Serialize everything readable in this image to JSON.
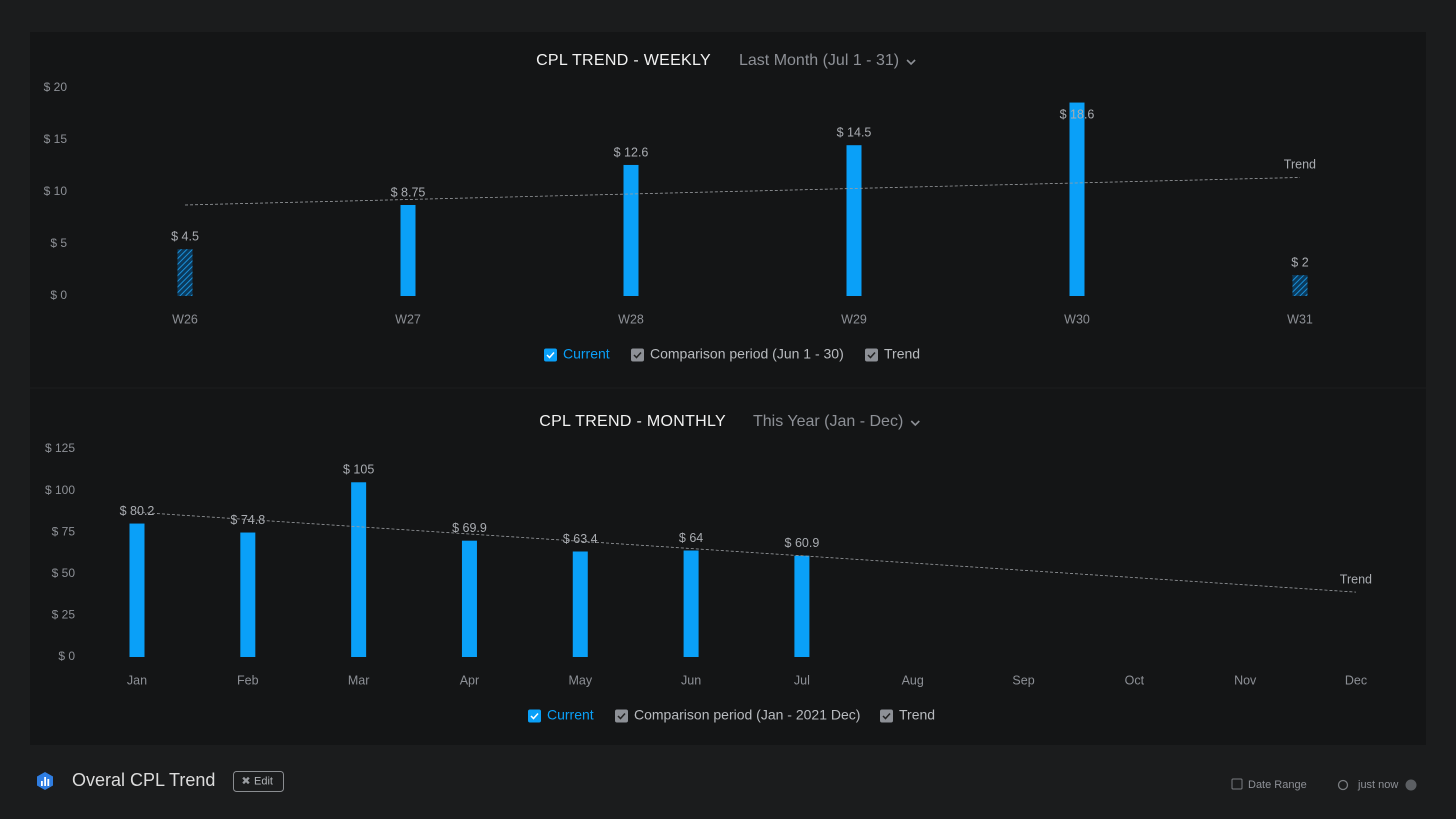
{
  "chart_data": [
    {
      "type": "bar",
      "title": "CPL TREND - WEEKLY",
      "subtitle": "Last Month (Jul 1 - 31)",
      "categories": [
        "W26",
        "W27",
        "W28",
        "W29",
        "W30",
        "W31"
      ],
      "series": [
        {
          "name": "Current",
          "color": "#0aa0f8",
          "values": [
            4.5,
            8.75,
            12.6,
            14.5,
            18.6,
            2
          ],
          "value_labels": [
            "$ 4.5",
            "$ 8.75",
            "$ 12.6",
            "$ 14.5",
            "$ 18.6",
            "$ 2"
          ],
          "hatched": [
            true,
            false,
            false,
            false,
            false,
            true
          ]
        }
      ],
      "comparison": "Comparison period (Jun 1 - 30)",
      "trend": {
        "name": "Trend",
        "values": [
          8.75,
          11.4
        ]
      },
      "ylim": [
        0,
        20
      ],
      "yticks": [
        {
          "value": 0,
          "label": "$ 0"
        },
        {
          "value": 5,
          "label": "$ 5"
        },
        {
          "value": 10,
          "label": "$ 10"
        },
        {
          "value": 15,
          "label": "$ 15"
        },
        {
          "value": 20,
          "label": "$ 20"
        }
      ],
      "grid": false
    },
    {
      "type": "bar",
      "title": "CPL TREND - MONTHLY",
      "subtitle": "This Year (Jan - Dec)",
      "categories": [
        "Jan",
        "Feb",
        "Mar",
        "Apr",
        "May",
        "Jun",
        "Jul",
        "Aug",
        "Sep",
        "Oct",
        "Nov",
        "Dec"
      ],
      "series": [
        {
          "name": "Current",
          "color": "#0aa0f8",
          "values": [
            80.2,
            74.8,
            105,
            69.9,
            63.4,
            64,
            60.9,
            null,
            null,
            null,
            null,
            null
          ],
          "value_labels": [
            "$ 80.2",
            "$ 74.8",
            "$ 105",
            "$ 69.9",
            "$ 63.4",
            "$ 64",
            "$ 60.9",
            null,
            null,
            null,
            null,
            null
          ],
          "hatched": [
            false,
            false,
            false,
            false,
            false,
            false,
            false,
            false,
            false,
            false,
            false,
            false
          ]
        }
      ],
      "comparison": "Comparison period (Jan - 2021 Dec)",
      "trend": {
        "name": "Trend",
        "values": [
          87,
          39
        ]
      },
      "ylim": [
        0,
        125
      ],
      "yticks": [
        {
          "value": 0,
          "label": "$ 0"
        },
        {
          "value": 25,
          "label": "$ 25"
        },
        {
          "value": 50,
          "label": "$ 50"
        },
        {
          "value": 75,
          "label": "$ 75"
        },
        {
          "value": 100,
          "label": "$ 100"
        },
        {
          "value": 125,
          "label": "$ 125"
        }
      ],
      "grid": false
    }
  ],
  "footer": {
    "title": "Overal CPL Trend",
    "edit": "Edit",
    "date_range": "Date Range",
    "updated": "just now"
  }
}
